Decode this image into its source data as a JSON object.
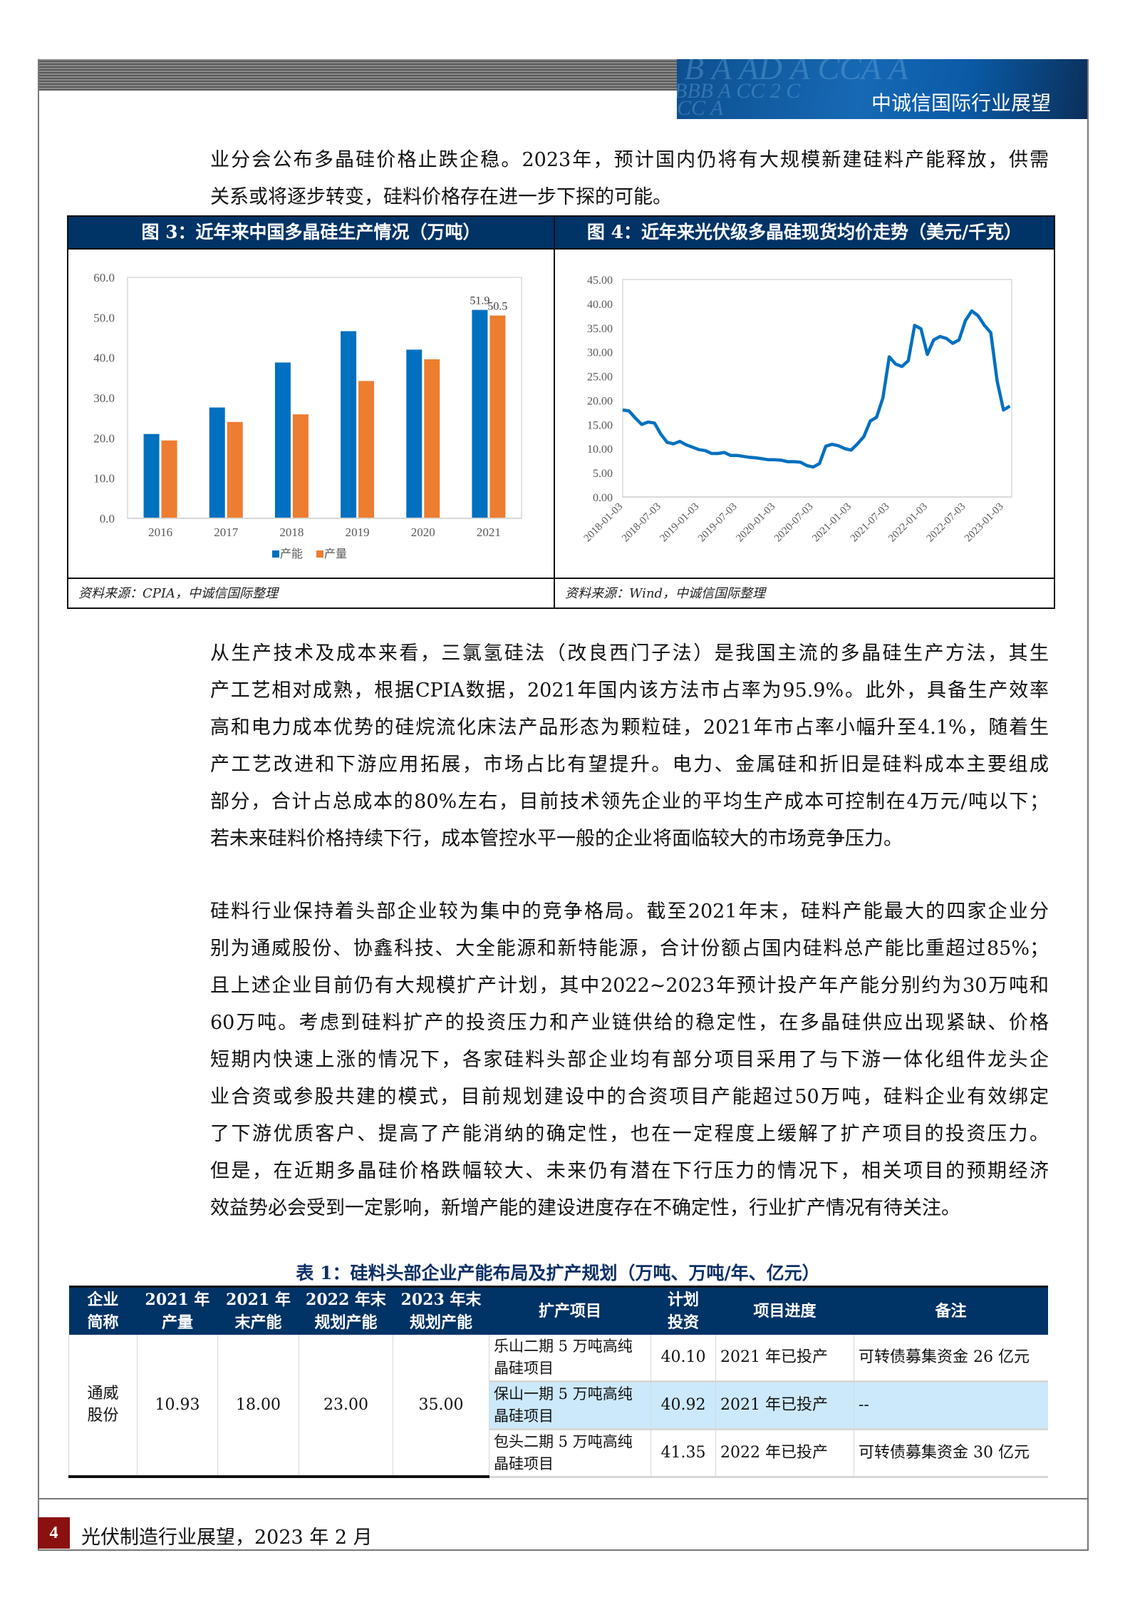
{
  "header": {
    "banner_title": "中诚信国际行业展望",
    "banner_deco": [
      "B A AD A CCA A",
      "BBB A CC 2 C",
      "CC A"
    ]
  },
  "paragraphs": [
    {
      "lines": [
        "业分会公布多晶硅价格止跌企稳。2023年，预计国内仍将有大规模新建硅料产能释放，供需",
        "关系或将逐步转变，硅料价格存在进一步下探的可能。"
      ]
    },
    {
      "lines": [
        "从生产技术及成本来看，三氯氢硅法（改良西门子法）是我国主流的多晶硅生产方法，其生",
        "产工艺相对成熟，根据CPIA数据，2021年国内该方法市占率为95.9%。此外，具备生产效率",
        "高和电力成本优势的硅烷流化床法产品形态为颗粒硅，2021年市占率小幅升至4.1%，随着生",
        "产工艺改进和下游应用拓展，市场占比有望提升。电力、金属硅和折旧是硅料成本主要组成",
        "部分，合计占总成本的80%左右，目前技术领先企业的平均生产成本可控制在4万元/吨以下；",
        "若未来硅料价格持续下行，成本管控水平一般的企业将面临较大的市场竞争压力。"
      ]
    },
    {
      "lines": [
        "硅料行业保持着头部企业较为集中的竞争格局。截至2021年末，硅料产能最大的四家企业分",
        "别为通威股份、协鑫科技、大全能源和新特能源，合计份额占国内硅料总产能比重超过85%；",
        "且上述企业目前仍有大规模扩产计划，其中2022~2023年预计投产年产能分别约为30万吨和",
        "60万吨。考虑到硅料扩产的投资压力和产业链供给的稳定性，在多晶硅供应出现紧缺、价格",
        "短期内快速上涨的情况下，各家硅料头部企业均有部分项目采用了与下游一体化组件龙头企",
        "业合资或参股共建的模式，目前规划建设中的合资项目产能超过50万吨，硅料企业有效绑定",
        "了下游优质客户、提高了产能消纳的确定性，也在一定程度上缓解了扩产项目的投资压力。",
        "但是，在近期多晶硅价格跌幅较大、未来仍有潜在下行压力的情况下，相关项目的预期经济",
        "效益势必会受到一定影响，新增产能的建设进度存在不确定性，行业扩产情况有待关注。"
      ]
    }
  ],
  "figures": [
    {
      "title": "图 3：近年来中国多晶硅生产情况（万吨）",
      "source": "资料来源：CPIA，中诚信国际整理"
    },
    {
      "title": "图 4：近年来光伏级多晶硅现货均价走势（美元/千克）",
      "source": "资料来源：Wind，中诚信国际整理"
    }
  ],
  "chart_data": [
    {
      "type": "bar",
      "categories": [
        "2016",
        "2017",
        "2018",
        "2019",
        "2020",
        "2021"
      ],
      "series": [
        {
          "name": "产能",
          "color": "#0070c0",
          "values": [
            21.0,
            27.6,
            38.8,
            46.6,
            42.0,
            51.9
          ]
        },
        {
          "name": "产量",
          "color": "#ed7d31",
          "values": [
            19.4,
            24.0,
            25.9,
            34.2,
            39.6,
            50.5
          ]
        }
      ],
      "data_labels": {
        "2021": [
          "51.9",
          "50.5"
        ]
      },
      "ylim": [
        0,
        60
      ],
      "yticks": [
        "0.0",
        "10.0",
        "20.0",
        "30.0",
        "40.0",
        "50.0",
        "60.0"
      ],
      "legend": "bottom",
      "grid": false
    },
    {
      "type": "line",
      "color": "#0070c0",
      "x": [
        "2018-01",
        "2018-02",
        "2018-03",
        "2018-04",
        "2018-05",
        "2018-06",
        "2018-07",
        "2018-08",
        "2018-09",
        "2018-10",
        "2018-11",
        "2018-12",
        "2019-01",
        "2019-02",
        "2019-03",
        "2019-04",
        "2019-05",
        "2019-06",
        "2019-07",
        "2019-08",
        "2019-09",
        "2019-10",
        "2019-11",
        "2019-12",
        "2020-01",
        "2020-02",
        "2020-03",
        "2020-04",
        "2020-05",
        "2020-06",
        "2020-07",
        "2020-08",
        "2020-09",
        "2020-10",
        "2020-11",
        "2020-12",
        "2021-01",
        "2021-02",
        "2021-03",
        "2021-04",
        "2021-05",
        "2021-06",
        "2021-07",
        "2021-08",
        "2021-09",
        "2021-10",
        "2021-11",
        "2021-12",
        "2022-01",
        "2022-02",
        "2022-03",
        "2022-04",
        "2022-05",
        "2022-06",
        "2022-07",
        "2022-08",
        "2022-09",
        "2022-10",
        "2022-11",
        "2022-12",
        "2023-01",
        "2023-02"
      ],
      "y": [
        18.0,
        17.8,
        16.3,
        15.0,
        15.5,
        15.3,
        13.0,
        11.3,
        11.0,
        11.5,
        10.8,
        10.3,
        9.8,
        9.6,
        9.0,
        9.0,
        9.2,
        8.6,
        8.6,
        8.4,
        8.2,
        8.1,
        7.9,
        7.7,
        7.7,
        7.6,
        7.3,
        7.3,
        7.2,
        6.5,
        6.2,
        6.9,
        10.5,
        10.9,
        10.6,
        10.0,
        9.7,
        11.0,
        12.5,
        15.7,
        16.5,
        20.5,
        29.0,
        27.5,
        27.0,
        28.2,
        35.5,
        34.8,
        29.5,
        32.5,
        33.2,
        32.8,
        31.8,
        32.5,
        36.5,
        38.5,
        37.5,
        35.5,
        34.0,
        24.0,
        18.0,
        18.8
      ],
      "xticks": [
        "2018-01-03",
        "2018-07-03",
        "2019-01-03",
        "2019-07-03",
        "2020-01-03",
        "2020-07-03",
        "2021-01-03",
        "2021-07-03",
        "2022-01-03",
        "2022-07-03",
        "2023-01-03"
      ],
      "ylim": [
        0,
        45
      ],
      "yticks": [
        "0.00",
        "5.00",
        "10.00",
        "15.00",
        "20.00",
        "25.00",
        "30.00",
        "35.00",
        "40.00",
        "45.00"
      ],
      "grid": false
    }
  ],
  "table": {
    "title": "表 1：硅料头部企业产能布局及扩产规划（万吨、万吨/年、亿元）",
    "headers": [
      "企业\n简称",
      "2021 年\n产量",
      "2021 年\n末产能",
      "2022 年末\n规划产能",
      "2023 年末\n规划产能",
      "扩产项目",
      "计划\n投资",
      "项目进度",
      "备注"
    ],
    "company": "通威\n股份",
    "output_2021": "10.93",
    "capacity_2021": "18.00",
    "plan_2022": "23.00",
    "plan_2023": "35.00",
    "projects": [
      {
        "name": "乐山二期 5 万吨高纯晶硅项目",
        "investment": "40.10",
        "progress": "2021 年已投产",
        "note": "可转债募集资金 26 亿元"
      },
      {
        "name": "保山一期 5 万吨高纯晶硅项目",
        "investment": "40.92",
        "progress": "2021 年已投产",
        "note": "--"
      },
      {
        "name": "包头二期 5 万吨高纯晶硅项目",
        "investment": "41.35",
        "progress": "2022 年已投产",
        "note": "可转债募集资金 30 亿元"
      }
    ],
    "highlight_color": "#cce9fb"
  },
  "footer": {
    "page_number": "4",
    "text": "光伏制造行业展望，2023 年 2 月"
  }
}
